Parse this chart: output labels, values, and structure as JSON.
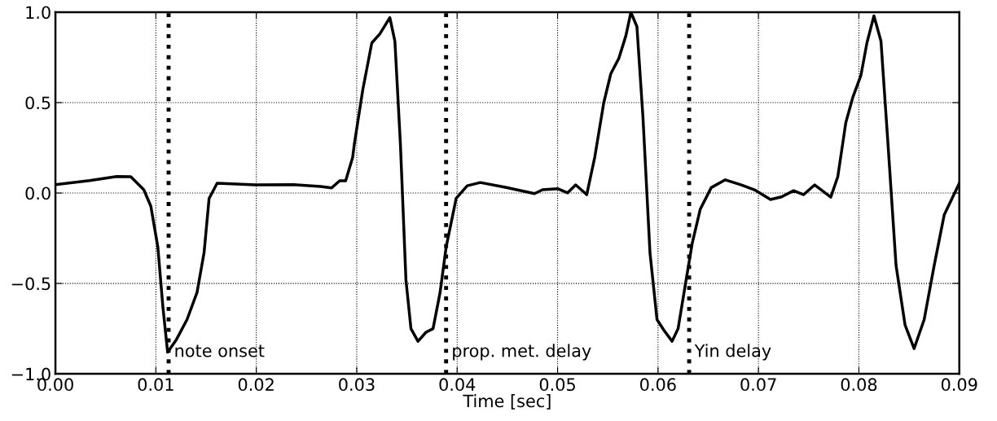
{
  "chart_data": {
    "type": "line",
    "xlabel": "Time [sec]",
    "x": [
      0,
      0.0034,
      0.0061,
      0.0075,
      0.0088,
      0.0095,
      0.0102,
      0.0107,
      0.01117,
      0.01205,
      0.0131,
      0.0141,
      0.0148,
      0.0153,
      0.0161,
      0.0199,
      0.0237,
      0.0264,
      0.0275,
      0.0283,
      0.0289,
      0.0296,
      0.02976,
      0.0306,
      0.0315,
      0.0323,
      0.0333,
      0.0338,
      0.03435,
      0.0349,
      0.0354,
      0.0361,
      0.0369,
      0.0376,
      0.0383,
      0.0389,
      0.0399,
      0.041,
      0.0423,
      0.0448,
      0.0477,
      0.0485,
      0.05,
      0.051,
      0.0518,
      0.0529,
      0.0537,
      0.0546,
      0.0553,
      0.0561,
      0.0568,
      0.0573,
      0.0579,
      0.0585,
      0.0592,
      0.0599,
      0.0606,
      0.0614,
      0.062,
      0.0628,
      0.0634,
      0.0642,
      0.0653,
      0.0667,
      0.0683,
      0.0696,
      0.0712,
      0.0723,
      0.0735,
      0.0745,
      0.0756,
      0.0772,
      0.0779,
      0.0787,
      0.0794,
      0.0802,
      0.0808,
      0.0815,
      0.0822,
      0.0829,
      0.0837,
      0.0846,
      0.0855,
      0.0865,
      0.0875,
      0.0885,
      0.09
    ],
    "series": [
      {
        "color": "#000000",
        "values": [
          0.046,
          0.069,
          0.091,
          0.09,
          0.018,
          -0.073,
          -0.3,
          -0.63,
          -0.88,
          -0.81,
          -0.7,
          -0.55,
          -0.33,
          -0.03,
          0.054,
          0.045,
          0.046,
          0.036,
          0.028,
          0.068,
          0.068,
          0.198,
          0.27,
          0.57,
          0.83,
          0.88,
          0.97,
          0.84,
          0.27,
          -0.48,
          -0.75,
          -0.82,
          -0.77,
          -0.75,
          -0.55,
          -0.3,
          -0.03,
          0.04,
          0.058,
          0.032,
          -0.003,
          0.018,
          0.024,
          0.001,
          0.045,
          -0.009,
          0.198,
          0.5,
          0.66,
          0.745,
          0.87,
          1.0,
          0.92,
          0.42,
          -0.33,
          -0.7,
          -0.76,
          -0.82,
          -0.75,
          -0.48,
          -0.28,
          -0.09,
          0.03,
          0.073,
          0.045,
          0.018,
          -0.036,
          -0.021,
          0.013,
          -0.009,
          0.045,
          -0.023,
          0.09,
          0.39,
          0.53,
          0.65,
          0.83,
          0.98,
          0.84,
          0.27,
          -0.4,
          -0.73,
          -0.86,
          -0.7,
          -0.4,
          -0.12,
          0.054
        ]
      }
    ],
    "xlim": [
      0,
      0.09
    ],
    "xticks": [
      {
        "value": 0,
        "label": "0.00"
      },
      0.01,
      0.02,
      0.03,
      0.04,
      0.05,
      0.06,
      0.07,
      0.08,
      0.09
    ],
    "ylim": [
      -1.0,
      1.0
    ],
    "yticks": [
      {
        "value": -1.0,
        "label": "−1.0"
      },
      {
        "value": -0.5,
        "label": "−0.5"
      },
      {
        "value": 0,
        "label": "0.0"
      },
      {
        "value": 0.5,
        "label": "0.5"
      },
      {
        "value": 1.0,
        "label": "1.0"
      }
    ],
    "grid": true,
    "line_style": "solid",
    "marker": "none",
    "ref_lines": [
      {
        "axis": "x",
        "value": 0.01127,
        "label": "note onset",
        "color": "#000000",
        "line_style": "dotted"
      },
      {
        "axis": "x",
        "value": 0.0389,
        "label": "prop. met. delay",
        "color": "#000000",
        "line_style": "dotted"
      },
      {
        "axis": "x",
        "value": 0.0631,
        "label": "Yin delay",
        "color": "#000000",
        "line_style": "dotted"
      }
    ]
  }
}
